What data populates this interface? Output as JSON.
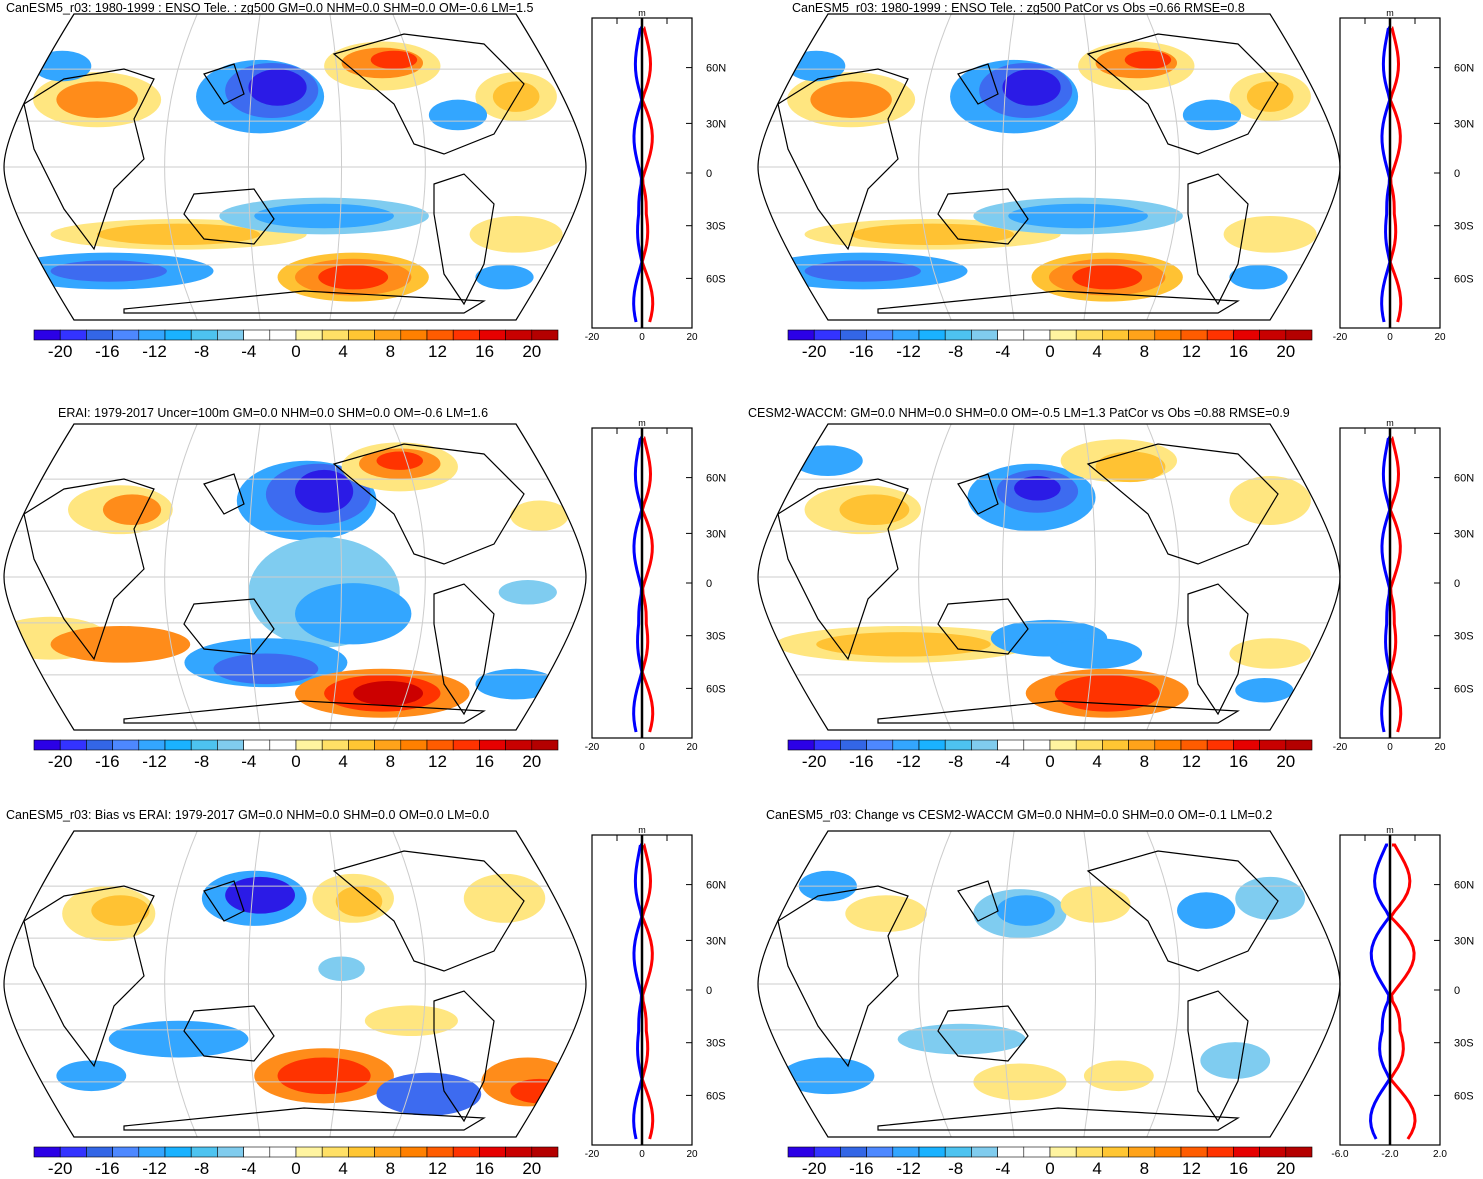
{
  "figure": {
    "type": "ENSO teleconnection zg500 comparison",
    "colorbar": {
      "ticks": [
        "-20",
        "-16",
        "-12",
        "-8",
        "-4",
        "0",
        "4",
        "8",
        "12",
        "16",
        "20"
      ],
      "colors": [
        "#2b00e6",
        "#3333ff",
        "#3366e6",
        "#4d88ff",
        "#33a6ff",
        "#1ab2ff",
        "#4dc3f0",
        "#80ccee",
        "#ffffff",
        "#ffffff",
        "#fff4a0",
        "#ffe066",
        "#ffc633",
        "#ffa31a",
        "#ff8000",
        "#ff5c00",
        "#ff3300",
        "#e60000",
        "#c80000",
        "#b40000"
      ]
    },
    "latitude_labels": [
      "60N",
      "30N",
      "0",
      "30S",
      "60S"
    ],
    "profile_unit": "m"
  },
  "panels": [
    {
      "title": "CanESM5_r03: 1980-1999 : ENSO Tele. : zg500 GM=0.0 NHM=0.0 SHM=0.0 OM=-0.6 LM=1.5",
      "profile_xticks": [
        "-20",
        "0",
        "20"
      ],
      "style": "model"
    },
    {
      "title": "CanESM5_r03: 1980-1999 : ENSO Tele. : zg500 PatCor vs Obs =0.66 RMSE=0.8",
      "profile_xticks": [
        "-20",
        "0",
        "20"
      ],
      "style": "model"
    },
    {
      "title": "ERAI: 1979-2017 Uncer=100m GM=0.0 NHM=0.0 SHM=0.0 OM=-0.6 LM=1.6",
      "profile_xticks": [
        "-20",
        "0",
        "20"
      ],
      "style": "obs"
    },
    {
      "title": "CESM2-WACCM: GM=0.0 NHM=0.0 SHM=0.0 OM=-0.5 LM=1.3 PatCor vs Obs =0.88 RMSE=0.9",
      "profile_xticks": [
        "-20",
        "0",
        "20"
      ],
      "style": "cesm"
    },
    {
      "title": "CanESM5_r03: Bias vs ERAI: 1979-2017 GM=0.0 NHM=0.0 SHM=0.0 OM=0.0 LM=0.0",
      "profile_xticks": [
        "-20",
        "0",
        "20"
      ],
      "style": "bias"
    },
    {
      "title": "CanESM5_r03: Change vs CESM2-WACCM GM=0.0 NHM=0.0 SHM=0.0 OM=-0.1 LM=0.2",
      "profile_xticks": [
        "-6.0",
        "-2.0",
        "2.0"
      ],
      "style": "change"
    }
  ]
}
